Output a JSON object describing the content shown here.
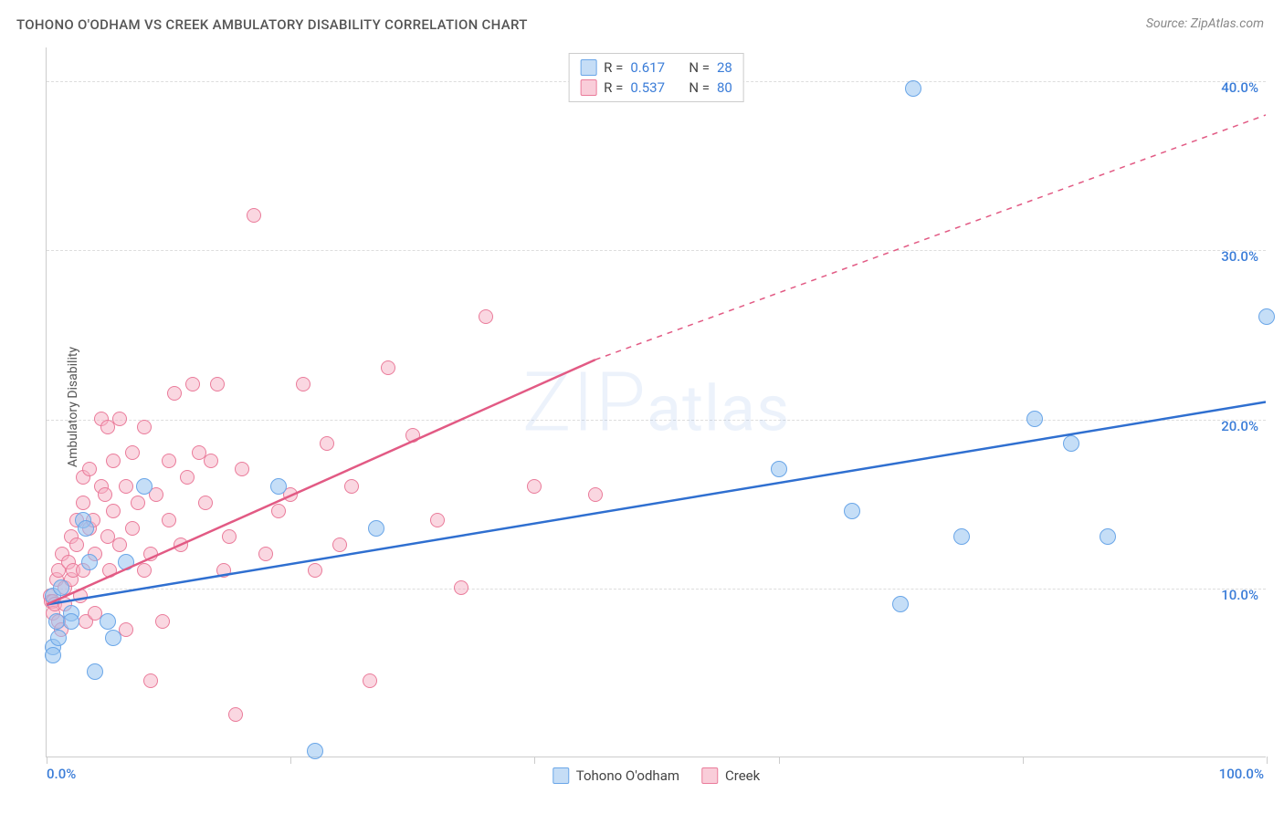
{
  "title": "TOHONO O'ODHAM VS CREEK AMBULATORY DISABILITY CORRELATION CHART",
  "source": "Source: ZipAtlas.com",
  "watermark_left": "ZIP",
  "watermark_right": "atlas",
  "ylabel": "Ambulatory Disability",
  "chart": {
    "type": "scatter",
    "xlim": [
      0,
      100
    ],
    "ylim": [
      0,
      42
    ],
    "xtick_positions": [
      0,
      20,
      40,
      60,
      80,
      100
    ],
    "xtick_labels_shown": {
      "0": "0.0%",
      "100": "100.0%"
    },
    "ytick_positions": [
      10,
      20,
      30,
      40
    ],
    "ytick_labels": [
      "10.0%",
      "20.0%",
      "30.0%",
      "40.0%"
    ],
    "grid_color": "#dddddd",
    "axis_color": "#cccccc",
    "background_color": "#ffffff",
    "label_color_x": "#3b7dd8",
    "label_color_y": "#3b7dd8"
  },
  "legend_top": {
    "rows": [
      {
        "swatch_fill": "#c5ddf6",
        "swatch_border": "#6aa6e8",
        "r_label": "R  =",
        "r_val": "0.617",
        "n_label": "N  =",
        "n_val": "28",
        "val_color": "#3b7dd8"
      },
      {
        "swatch_fill": "#f9cdd9",
        "swatch_border": "#ea7b9a",
        "r_label": "R  =",
        "r_val": "0.537",
        "n_label": "N  =",
        "n_val": "80",
        "val_color": "#3b7dd8"
      }
    ]
  },
  "legend_bottom": {
    "items": [
      {
        "swatch_fill": "#c5ddf6",
        "swatch_border": "#6aa6e8",
        "label": "Tohono O'odham"
      },
      {
        "swatch_fill": "#f9cdd9",
        "swatch_border": "#ea7b9a",
        "label": "Creek"
      }
    ]
  },
  "series": {
    "tohono": {
      "marker_fill": "rgba(150,195,240,0.55)",
      "marker_stroke": "#6aa6e8",
      "marker_r": 9,
      "trend_color": "#2f6fd0",
      "trend_width": 2.5,
      "trend": {
        "x1": 0,
        "y1": 9.0,
        "x2": 100,
        "y2": 21.0
      },
      "points": [
        [
          0.5,
          9.5
        ],
        [
          0.8,
          8.0
        ],
        [
          0.5,
          6.5
        ],
        [
          1.0,
          7.0
        ],
        [
          0.5,
          6.0
        ],
        [
          1.2,
          10.0
        ],
        [
          2.0,
          8.5
        ],
        [
          2.0,
          8.0
        ],
        [
          3.0,
          14.0
        ],
        [
          3.2,
          13.5
        ],
        [
          3.5,
          11.5
        ],
        [
          4.0,
          5.0
        ],
        [
          5.0,
          8.0
        ],
        [
          5.5,
          7.0
        ],
        [
          6.5,
          11.5
        ],
        [
          8.0,
          16.0
        ],
        [
          19.0,
          16.0
        ],
        [
          22.0,
          0.3
        ],
        [
          27.0,
          13.5
        ],
        [
          60.0,
          17.0
        ],
        [
          66.0,
          14.5
        ],
        [
          70.0,
          9.0
        ],
        [
          71.0,
          39.5
        ],
        [
          75.0,
          13.0
        ],
        [
          81.0,
          20.0
        ],
        [
          84.0,
          18.5
        ],
        [
          87.0,
          13.0
        ],
        [
          100.0,
          26.0
        ]
      ]
    },
    "creek": {
      "marker_fill": "rgba(245,175,195,0.5)",
      "marker_stroke": "#ea7b9a",
      "marker_r": 8,
      "trend_color": "#e25a84",
      "trend_width": 2.5,
      "trend_solid": {
        "x1": 0,
        "y1": 9.0,
        "x2": 45,
        "y2": 23.5
      },
      "trend_dashed": {
        "x1": 45,
        "y1": 23.5,
        "x2": 100,
        "y2": 38.0
      },
      "points": [
        [
          0.3,
          9.5
        ],
        [
          0.4,
          9.2
        ],
        [
          0.5,
          9.2
        ],
        [
          0.5,
          8.5
        ],
        [
          0.7,
          9.0
        ],
        [
          0.8,
          10.5
        ],
        [
          1.0,
          11.0
        ],
        [
          1.0,
          8.0
        ],
        [
          1.2,
          7.5
        ],
        [
          1.3,
          12.0
        ],
        [
          1.5,
          10.0
        ],
        [
          1.5,
          9.0
        ],
        [
          1.8,
          11.5
        ],
        [
          2.0,
          10.5
        ],
        [
          2.0,
          13.0
        ],
        [
          2.2,
          11.0
        ],
        [
          2.5,
          12.5
        ],
        [
          2.5,
          14.0
        ],
        [
          2.8,
          9.5
        ],
        [
          3.0,
          11.0
        ],
        [
          3.0,
          15.0
        ],
        [
          3.0,
          16.5
        ],
        [
          3.2,
          8.0
        ],
        [
          3.5,
          13.5
        ],
        [
          3.5,
          17.0
        ],
        [
          3.8,
          14.0
        ],
        [
          4.0,
          12.0
        ],
        [
          4.0,
          8.5
        ],
        [
          4.5,
          16.0
        ],
        [
          4.5,
          20.0
        ],
        [
          4.8,
          15.5
        ],
        [
          5.0,
          13.0
        ],
        [
          5.0,
          19.5
        ],
        [
          5.2,
          11.0
        ],
        [
          5.5,
          17.5
        ],
        [
          5.5,
          14.5
        ],
        [
          6.0,
          20.0
        ],
        [
          6.0,
          12.5
        ],
        [
          6.5,
          7.5
        ],
        [
          6.5,
          16.0
        ],
        [
          7.0,
          18.0
        ],
        [
          7.0,
          13.5
        ],
        [
          7.5,
          15.0
        ],
        [
          8.0,
          19.5
        ],
        [
          8.0,
          11.0
        ],
        [
          8.5,
          12.0
        ],
        [
          8.5,
          4.5
        ],
        [
          9.0,
          15.5
        ],
        [
          9.5,
          8.0
        ],
        [
          10.0,
          17.5
        ],
        [
          10.0,
          14.0
        ],
        [
          10.5,
          21.5
        ],
        [
          11.0,
          12.5
        ],
        [
          11.5,
          16.5
        ],
        [
          12.0,
          22.0
        ],
        [
          12.5,
          18.0
        ],
        [
          13.0,
          15.0
        ],
        [
          13.5,
          17.5
        ],
        [
          14.0,
          22.0
        ],
        [
          14.5,
          11.0
        ],
        [
          15.0,
          13.0
        ],
        [
          15.5,
          2.5
        ],
        [
          16.0,
          17.0
        ],
        [
          17.0,
          32.0
        ],
        [
          18.0,
          12.0
        ],
        [
          19.0,
          14.5
        ],
        [
          20.0,
          15.5
        ],
        [
          21.0,
          22.0
        ],
        [
          22.0,
          11.0
        ],
        [
          23.0,
          18.5
        ],
        [
          24.0,
          12.5
        ],
        [
          25.0,
          16.0
        ],
        [
          26.5,
          4.5
        ],
        [
          28.0,
          23.0
        ],
        [
          30.0,
          19.0
        ],
        [
          32.0,
          14.0
        ],
        [
          34.0,
          10.0
        ],
        [
          36.0,
          26.0
        ],
        [
          40.0,
          16.0
        ],
        [
          45.0,
          15.5
        ]
      ]
    }
  }
}
